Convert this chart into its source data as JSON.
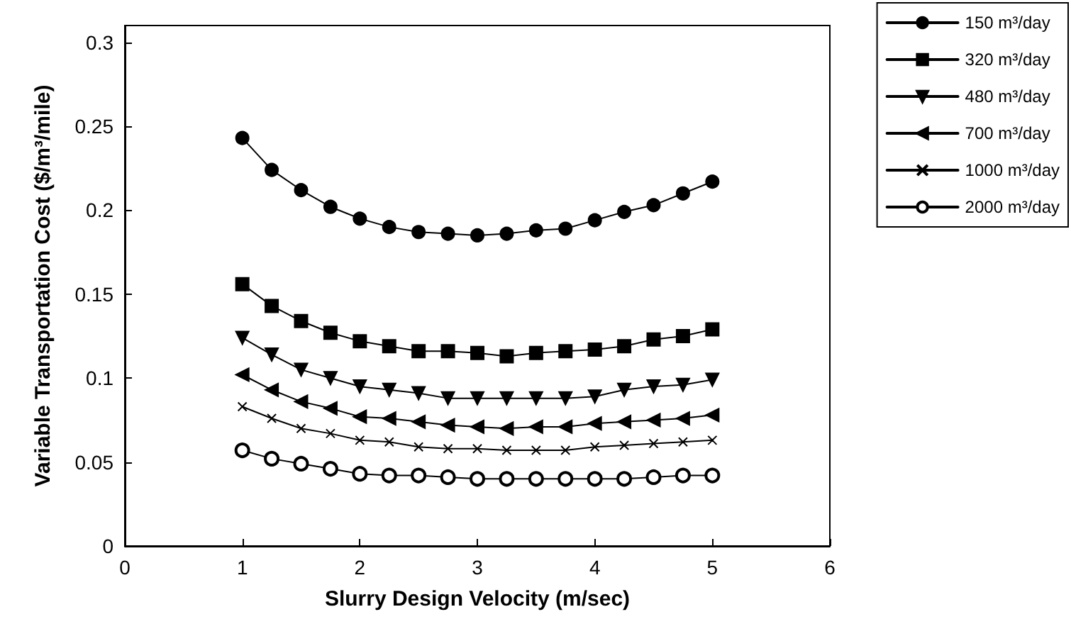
{
  "chart_data": {
    "type": "line",
    "xlabel": "Slurry Design Velocity (m/sec)",
    "ylabel": "Variable Transportation Cost ($/m³/mile)",
    "x": [
      1,
      1.25,
      1.5,
      1.75,
      2,
      2.25,
      2.5,
      2.75,
      3,
      3.25,
      3.5,
      3.75,
      4,
      4.25,
      4.5,
      4.75,
      5
    ],
    "xlim": [
      0,
      6
    ],
    "xticks": [
      0,
      1,
      2,
      3,
      4,
      5,
      6
    ],
    "ylim": [
      0,
      0.31
    ],
    "yticks": [
      0,
      0.05,
      0.1,
      0.15,
      0.2,
      0.25,
      0.3
    ],
    "grid": false,
    "legend": "top right",
    "line_style": "solid",
    "series": [
      {
        "name": "150 m³/day",
        "color": "#000000",
        "marker": "circle",
        "values": [
          0.243,
          0.224,
          0.212,
          0.202,
          0.195,
          0.19,
          0.187,
          0.186,
          0.185,
          0.186,
          0.188,
          0.189,
          0.194,
          0.199,
          0.203,
          0.21,
          0.217
        ]
      },
      {
        "name": "320 m³/day",
        "color": "#000000",
        "marker": "square",
        "values": [
          0.156,
          0.143,
          0.134,
          0.127,
          0.122,
          0.119,
          0.116,
          0.116,
          0.115,
          0.113,
          0.115,
          0.116,
          0.117,
          0.119,
          0.123,
          0.125,
          0.129
        ]
      },
      {
        "name": "480 m³/day",
        "color": "#000000",
        "marker": "triangle-down",
        "values": [
          0.124,
          0.114,
          0.105,
          0.1,
          0.095,
          0.093,
          0.091,
          0.088,
          0.088,
          0.088,
          0.088,
          0.088,
          0.089,
          0.093,
          0.095,
          0.096,
          0.099
        ]
      },
      {
        "name": "700 m³/day",
        "color": "#000000",
        "marker": "triangle-left",
        "values": [
          0.102,
          0.093,
          0.086,
          0.082,
          0.077,
          0.076,
          0.074,
          0.072,
          0.071,
          0.07,
          0.071,
          0.071,
          0.073,
          0.074,
          0.075,
          0.076,
          0.078
        ]
      },
      {
        "name": "1000 m³/day",
        "color": "#000000",
        "marker": "cross",
        "values": [
          0.083,
          0.076,
          0.07,
          0.067,
          0.063,
          0.062,
          0.059,
          0.058,
          0.058,
          0.057,
          0.057,
          0.057,
          0.059,
          0.06,
          0.061,
          0.062,
          0.063
        ]
      },
      {
        "name": "2000 m³/day",
        "color": "#000000",
        "marker": "circle-open",
        "values": [
          0.057,
          0.052,
          0.049,
          0.046,
          0.043,
          0.042,
          0.042,
          0.041,
          0.04,
          0.04,
          0.04,
          0.04,
          0.04,
          0.04,
          0.041,
          0.042,
          0.042
        ]
      }
    ]
  }
}
